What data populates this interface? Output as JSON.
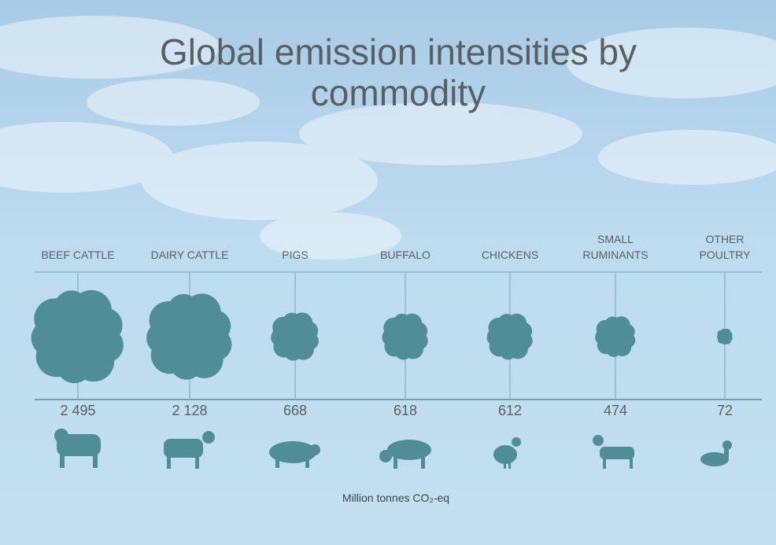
{
  "chart_data": {
    "type": "bubble",
    "title": "Global emission intensities by commodity",
    "categories": [
      "BEEF CATTLE",
      "DAIRY CATTLE",
      "PIGS",
      "BUFFALO",
      "CHICKENS",
      "SMALL RUMINANTS",
      "OTHER POULTRY"
    ],
    "values": [
      2495,
      2128,
      668,
      618,
      612,
      474,
      72
    ],
    "value_labels": [
      "2 495",
      "2 128",
      "668",
      "618",
      "612",
      "474",
      "72"
    ],
    "unit": "Million tonnes CO₂-eq",
    "color": "#4f8d97"
  }
}
